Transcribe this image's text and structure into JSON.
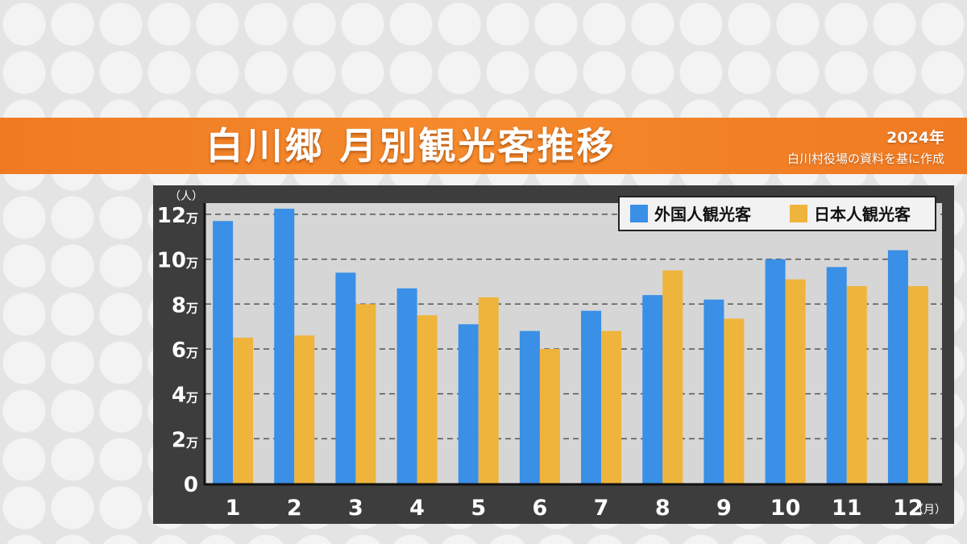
{
  "header": {
    "title": "白川郷 月別観光客推移",
    "year": "2024年",
    "source": "白川村役場の資料を基に作成"
  },
  "colors": {
    "foreign": "#3a8fe6",
    "japanese": "#efb43c",
    "banner": "#f07a22",
    "plot_bg": "#d6d6d6",
    "frame": "#3d3d3d"
  },
  "chart_data": {
    "type": "bar",
    "y_unit_label": "（人）",
    "x_unit_label": "（月）",
    "categories": [
      "1",
      "2",
      "3",
      "4",
      "5",
      "6",
      "7",
      "8",
      "9",
      "10",
      "11",
      "12"
    ],
    "ylim": [
      0,
      120000
    ],
    "yticks": [
      0,
      20000,
      40000,
      60000,
      80000,
      100000,
      120000
    ],
    "ytick_numbers": [
      "0",
      "2",
      "4",
      "6",
      "8",
      "10",
      "12"
    ],
    "ytick_suffix": "万",
    "grid": true,
    "legend_position": "top-right",
    "series": [
      {
        "name": "外国人観光客",
        "values": [
          117000,
          122500,
          94000,
          87000,
          71000,
          68000,
          77000,
          84000,
          82000,
          100000,
          96500,
          104000
        ]
      },
      {
        "name": "日本人観光客",
        "values": [
          65000,
          66000,
          80000,
          75000,
          83000,
          60000,
          68000,
          95000,
          73500,
          91000,
          88000,
          88000
        ]
      }
    ]
  }
}
